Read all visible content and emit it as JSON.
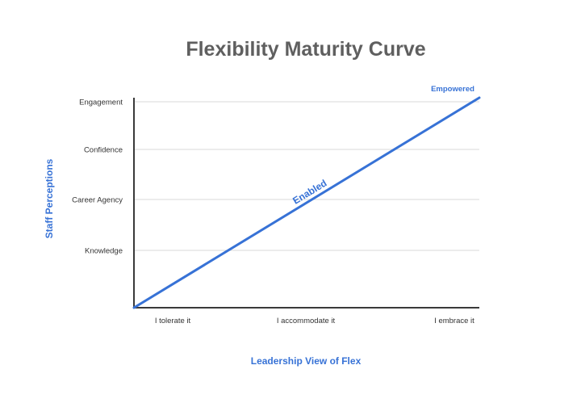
{
  "colors": {
    "line": "#3772d6",
    "axis": "#3a3a3a",
    "grid": "#d9d9d9",
    "title": "#5f5f5f",
    "tick_text": "#333333",
    "axis_title": "#3772d6"
  },
  "chart_data": {
    "type": "line",
    "title": "Flexibility Maturity Curve",
    "xlabel": "Leadership View of Flex",
    "ylabel": "Staff Perceptions",
    "x_categories": [
      "I tolerate it",
      "I accommodate it",
      "I embrace it"
    ],
    "y_categories": [
      "Knowledge",
      "Career Agency",
      "Confidence",
      "Engagement"
    ],
    "grid": true,
    "series": [
      {
        "values": [
          [
            0,
            0
          ],
          [
            1,
            1
          ]
        ],
        "point_labels": [
          {
            "text": "Enabled",
            "at": 0.5,
            "placement": "along-line"
          },
          {
            "text": "Empowered",
            "at": 1.0,
            "placement": "above"
          }
        ]
      }
    ]
  }
}
